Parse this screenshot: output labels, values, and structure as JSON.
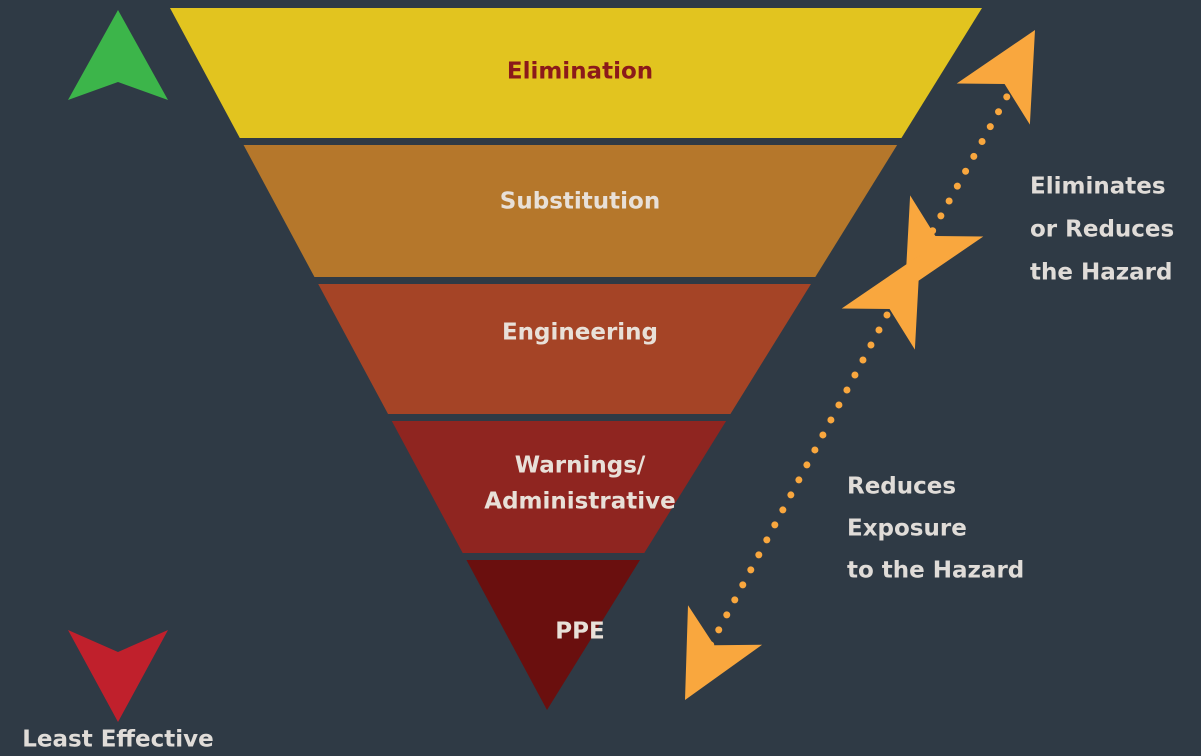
{
  "levels": [
    {
      "lines": [
        "Elimination"
      ]
    },
    {
      "lines": [
        "Substitution"
      ]
    },
    {
      "lines": [
        "Engineering"
      ]
    },
    {
      "lines": [
        "Warnings/",
        "Administrative"
      ]
    },
    {
      "lines": [
        "PPE"
      ]
    }
  ],
  "right_labels": [
    {
      "lines": [
        "Eliminates",
        "or Reduces",
        "the Hazard"
      ]
    },
    {
      "lines": [
        "Reduces",
        "Exposure",
        "to the Hazard"
      ]
    }
  ],
  "left_label": "Least Effective"
}
